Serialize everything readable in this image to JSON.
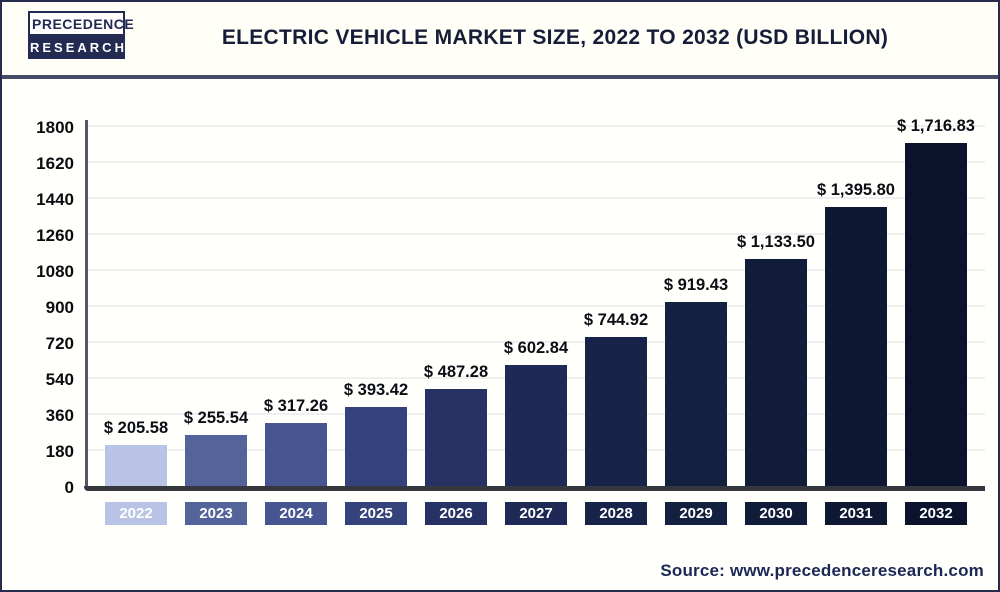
{
  "header": {
    "logo_line1": "PRECEDENCE",
    "logo_line2": "RESEARCH",
    "title": "ELECTRIC VEHICLE MARKET SIZE, 2022 TO 2032 (USD BILLION)"
  },
  "chart_data": {
    "type": "bar",
    "title": "Electric Vehicle Market Size, 2022 to 2032 (USD Billion)",
    "unit": "USD Billion",
    "categories": [
      "2022",
      "2023",
      "2024",
      "2025",
      "2026",
      "2027",
      "2028",
      "2029",
      "2030",
      "2031",
      "2032"
    ],
    "values": [
      205.58,
      255.54,
      317.26,
      393.42,
      487.28,
      602.84,
      744.92,
      919.43,
      1133.5,
      1395.8,
      1716.83
    ],
    "value_labels": [
      "$ 205.58",
      "$ 255.54",
      "$ 317.26",
      "$ 393.42",
      "$ 487.28",
      "$ 602.84",
      "$ 744.92",
      "$ 919.43",
      "$ 1,133.50",
      "$ 1,395.80",
      "$ 1,716.83"
    ],
    "bar_colors": [
      "#b9c3e6",
      "#55639b",
      "#475590",
      "#36427b",
      "#273264",
      "#1e2a55",
      "#172348",
      "#14203f",
      "#111c3a",
      "#0e1832",
      "#0a132b"
    ],
    "ylim": [
      0,
      1800
    ],
    "yticks": [
      0,
      180,
      360,
      540,
      720,
      900,
      1080,
      1260,
      1440,
      1620,
      1800
    ],
    "grid": "horizontal",
    "legend": "none",
    "xlabel": "",
    "ylabel": ""
  },
  "footer": {
    "source": "Source: www.precedenceresearch.com"
  },
  "colors": {
    "page_border": "#262c4e",
    "header_divider": "#474c66",
    "axis_line": "#35393f",
    "gridline": "#efefef",
    "title_text": "#161d38",
    "value_text": "#0b0e14",
    "source_text": "#1b2755",
    "logo_navy": "#232b52"
  }
}
